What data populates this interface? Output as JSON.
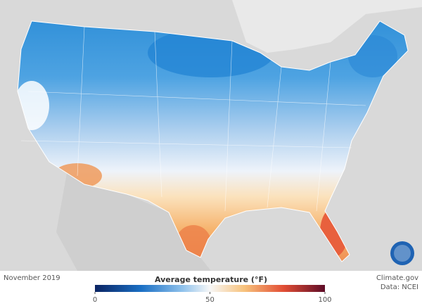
{
  "map": {
    "date": "November 2019",
    "legend": {
      "title": "Average temperature (°F)",
      "range": [
        0,
        100
      ],
      "ticks": [
        0,
        50,
        100
      ]
    },
    "credits": [
      "Climate.gov",
      "Data: NCEI"
    ]
  }
}
